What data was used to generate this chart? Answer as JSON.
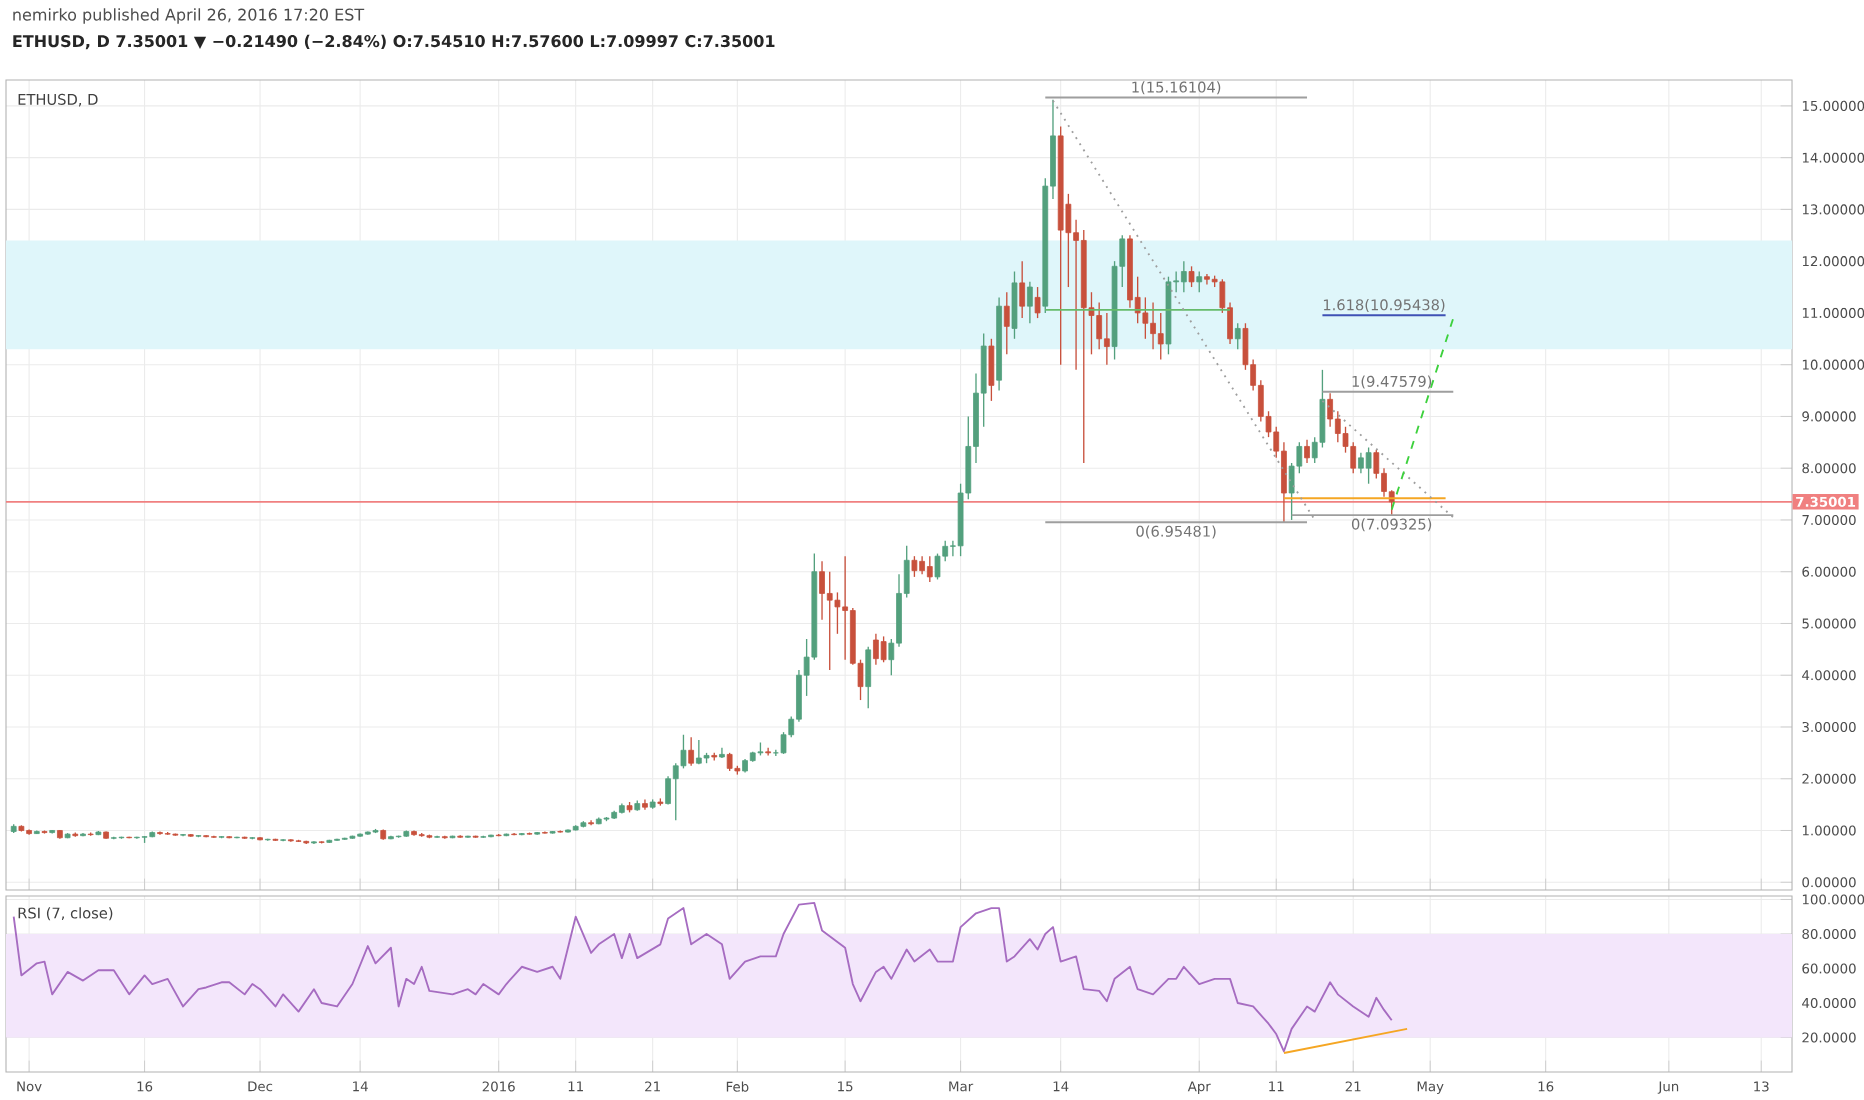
{
  "chart_data": [
    {
      "type": "candlestick",
      "title": "ETHUSD, D 7.35001 ▼ −0.21490 (−2.84%) O:7.54510 H:7.57600 L:7.09997 C:7.35001",
      "subtitle": "ETHUSD, D",
      "annotations": [
        "nemirko published April 26, 2016 17:20 EST",
        {
          "text": "1(15.16104)",
          "x": "2016-03-29",
          "y": 15.16104
        },
        {
          "text": "0(6.95481)",
          "x": "2016-03-29",
          "y": 6.95481
        },
        {
          "text": "1.618(10.95438)",
          "x": "2016-04-25",
          "y": 10.95438
        },
        {
          "text": "1(9.47579)",
          "x": "2016-04-26",
          "y": 9.47579
        },
        {
          "text": "0(7.09325)",
          "x": "2016-04-26",
          "y": 7.09325
        }
      ],
      "x": [
        "2015-10-30",
        "2015-10-31",
        "2015-11-01",
        "2015-11-02",
        "2015-11-03",
        "2015-11-04",
        "2015-11-05",
        "2015-11-06",
        "2015-11-07",
        "2015-11-08",
        "2015-11-09",
        "2015-11-10",
        "2015-11-11",
        "2015-11-12",
        "2015-11-13",
        "2015-11-14",
        "2015-11-15",
        "2015-11-16",
        "2015-11-17",
        "2015-11-18",
        "2015-11-19",
        "2015-11-20",
        "2015-11-21",
        "2015-11-22",
        "2015-11-23",
        "2015-11-24",
        "2015-11-25",
        "2015-11-26",
        "2015-11-27",
        "2015-11-28",
        "2015-11-29",
        "2015-11-30",
        "2015-12-01",
        "2015-12-02",
        "2015-12-03",
        "2015-12-04",
        "2015-12-05",
        "2015-12-06",
        "2015-12-07",
        "2015-12-08",
        "2015-12-09",
        "2015-12-10",
        "2015-12-11",
        "2015-12-12",
        "2015-12-13",
        "2015-12-14",
        "2015-12-15",
        "2015-12-16",
        "2015-12-17",
        "2015-12-18",
        "2015-12-19",
        "2015-12-20",
        "2015-12-21",
        "2015-12-22",
        "2015-12-23",
        "2015-12-24",
        "2015-12-25",
        "2015-12-26",
        "2015-12-27",
        "2015-12-28",
        "2015-12-29",
        "2015-12-30",
        "2015-12-31",
        "2016-01-01",
        "2016-01-02",
        "2016-01-03",
        "2016-01-04",
        "2016-01-05",
        "2016-01-06",
        "2016-01-07",
        "2016-01-08",
        "2016-01-09",
        "2016-01-10",
        "2016-01-11",
        "2016-01-12",
        "2016-01-13",
        "2016-01-14",
        "2016-01-15",
        "2016-01-16",
        "2016-01-17",
        "2016-01-18",
        "2016-01-19",
        "2016-01-20",
        "2016-01-21",
        "2016-01-22",
        "2016-01-23",
        "2016-01-24",
        "2016-01-25",
        "2016-01-26",
        "2016-01-27",
        "2016-01-28",
        "2016-01-29",
        "2016-01-30",
        "2016-01-31",
        "2016-02-01",
        "2016-02-02",
        "2016-02-03",
        "2016-02-04",
        "2016-02-05",
        "2016-02-06",
        "2016-02-07",
        "2016-02-08",
        "2016-02-09",
        "2016-02-10",
        "2016-02-11",
        "2016-02-12",
        "2016-02-13",
        "2016-02-14",
        "2016-02-15",
        "2016-02-16",
        "2016-02-17",
        "2016-02-18",
        "2016-02-19",
        "2016-02-20",
        "2016-02-21",
        "2016-02-22",
        "2016-02-23",
        "2016-02-24",
        "2016-02-25",
        "2016-02-26",
        "2016-02-27",
        "2016-02-28",
        "2016-02-29",
        "2016-03-01",
        "2016-03-02",
        "2016-03-03",
        "2016-03-04",
        "2016-03-05",
        "2016-03-06",
        "2016-03-07",
        "2016-03-08",
        "2016-03-09",
        "2016-03-10",
        "2016-03-11",
        "2016-03-12",
        "2016-03-13",
        "2016-03-14",
        "2016-03-15",
        "2016-03-16",
        "2016-03-17",
        "2016-03-18",
        "2016-03-19",
        "2016-03-20",
        "2016-03-21",
        "2016-03-22",
        "2016-03-23",
        "2016-03-24",
        "2016-03-25",
        "2016-03-26",
        "2016-03-27",
        "2016-03-28",
        "2016-03-29",
        "2016-03-30",
        "2016-03-31",
        "2016-04-01",
        "2016-04-02",
        "2016-04-03",
        "2016-04-04",
        "2016-04-05",
        "2016-04-06",
        "2016-04-07",
        "2016-04-08",
        "2016-04-09",
        "2016-04-10",
        "2016-04-11",
        "2016-04-12",
        "2016-04-13",
        "2016-04-14",
        "2016-04-15",
        "2016-04-16",
        "2016-04-17",
        "2016-04-18",
        "2016-04-19",
        "2016-04-20",
        "2016-04-21",
        "2016-04-22",
        "2016-04-23",
        "2016-04-24",
        "2016-04-25",
        "2016-04-26"
      ],
      "ohlc": [
        [
          0.98,
          1.12,
          0.95,
          1.08
        ],
        [
          1.08,
          1.1,
          0.98,
          1.0
        ],
        [
          1.0,
          1.02,
          0.92,
          0.94
        ],
        [
          0.94,
          1.0,
          0.93,
          0.98
        ],
        [
          0.98,
          1.0,
          0.94,
          0.96
        ],
        [
          0.96,
          1.01,
          0.94,
          1.0
        ],
        [
          1.0,
          1.01,
          0.84,
          0.86
        ],
        [
          0.86,
          0.95,
          0.85,
          0.93
        ],
        [
          0.93,
          0.96,
          0.88,
          0.9
        ],
        [
          0.9,
          0.95,
          0.89,
          0.93
        ],
        [
          0.93,
          0.96,
          0.9,
          0.92
        ],
        [
          0.92,
          0.99,
          0.91,
          0.97
        ],
        [
          0.97,
          0.98,
          0.84,
          0.85
        ],
        [
          0.85,
          0.88,
          0.83,
          0.86
        ],
        [
          0.86,
          0.88,
          0.84,
          0.87
        ],
        [
          0.87,
          0.88,
          0.85,
          0.86
        ],
        [
          0.86,
          0.88,
          0.84,
          0.87
        ],
        [
          0.87,
          0.89,
          0.76,
          0.88
        ],
        [
          0.88,
          0.98,
          0.87,
          0.96
        ],
        [
          0.96,
          0.98,
          0.92,
          0.94
        ],
        [
          0.94,
          0.97,
          0.92,
          0.93
        ],
        [
          0.93,
          0.94,
          0.9,
          0.91
        ],
        [
          0.91,
          0.93,
          0.89,
          0.92
        ],
        [
          0.92,
          0.93,
          0.88,
          0.89
        ],
        [
          0.89,
          0.91,
          0.87,
          0.9
        ],
        [
          0.9,
          0.91,
          0.87,
          0.88
        ],
        [
          0.88,
          0.9,
          0.86,
          0.87
        ],
        [
          0.87,
          0.89,
          0.85,
          0.88
        ],
        [
          0.88,
          0.89,
          0.85,
          0.86
        ],
        [
          0.86,
          0.88,
          0.85,
          0.87
        ],
        [
          0.87,
          0.88,
          0.84,
          0.85
        ],
        [
          0.85,
          0.87,
          0.83,
          0.86
        ],
        [
          0.86,
          0.87,
          0.81,
          0.82
        ],
        [
          0.82,
          0.84,
          0.8,
          0.83
        ],
        [
          0.83,
          0.84,
          0.8,
          0.81
        ],
        [
          0.81,
          0.83,
          0.79,
          0.82
        ],
        [
          0.82,
          0.83,
          0.78,
          0.8
        ],
        [
          0.8,
          0.82,
          0.78,
          0.79
        ],
        [
          0.79,
          0.8,
          0.74,
          0.76
        ],
        [
          0.76,
          0.79,
          0.74,
          0.78
        ],
        [
          0.78,
          0.79,
          0.75,
          0.77
        ],
        [
          0.77,
          0.82,
          0.76,
          0.81
        ],
        [
          0.81,
          0.84,
          0.8,
          0.83
        ],
        [
          0.83,
          0.86,
          0.82,
          0.85
        ],
        [
          0.85,
          0.9,
          0.84,
          0.89
        ],
        [
          0.89,
          0.94,
          0.88,
          0.93
        ],
        [
          0.93,
          0.98,
          0.92,
          0.97
        ],
        [
          0.97,
          1.03,
          0.95,
          1.0
        ],
        [
          1.0,
          1.02,
          0.82,
          0.84
        ],
        [
          0.84,
          0.9,
          0.83,
          0.88
        ],
        [
          0.88,
          0.9,
          0.86,
          0.89
        ],
        [
          0.89,
          1.0,
          0.88,
          0.98
        ],
        [
          0.98,
          1.0,
          0.9,
          0.92
        ],
        [
          0.92,
          0.95,
          0.88,
          0.9
        ],
        [
          0.9,
          0.92,
          0.85,
          0.87
        ],
        [
          0.87,
          0.9,
          0.86,
          0.88
        ],
        [
          0.88,
          0.9,
          0.84,
          0.86
        ],
        [
          0.86,
          0.9,
          0.85,
          0.89
        ],
        [
          0.89,
          0.91,
          0.86,
          0.87
        ],
        [
          0.87,
          0.9,
          0.86,
          0.89
        ],
        [
          0.89,
          0.9,
          0.86,
          0.87
        ],
        [
          0.87,
          0.9,
          0.86,
          0.88
        ],
        [
          0.88,
          0.92,
          0.87,
          0.91
        ],
        [
          0.91,
          0.93,
          0.89,
          0.9
        ],
        [
          0.9,
          0.94,
          0.89,
          0.93
        ],
        [
          0.93,
          0.95,
          0.91,
          0.92
        ],
        [
          0.92,
          0.95,
          0.91,
          0.94
        ],
        [
          0.94,
          0.96,
          0.92,
          0.93
        ],
        [
          0.93,
          0.97,
          0.92,
          0.96
        ],
        [
          0.96,
          0.98,
          0.94,
          0.95
        ],
        [
          0.95,
          0.99,
          0.94,
          0.98
        ],
        [
          0.98,
          1.0,
          0.96,
          0.97
        ],
        [
          0.97,
          1.02,
          0.96,
          1.01
        ],
        [
          1.01,
          1.1,
          1.0,
          1.08
        ],
        [
          1.08,
          1.18,
          1.06,
          1.15
        ],
        [
          1.15,
          1.2,
          1.1,
          1.13
        ],
        [
          1.13,
          1.25,
          1.12,
          1.22
        ],
        [
          1.22,
          1.26,
          1.18,
          1.24
        ],
        [
          1.24,
          1.38,
          1.22,
          1.35
        ],
        [
          1.35,
          1.52,
          1.33,
          1.48
        ],
        [
          1.48,
          1.55,
          1.35,
          1.4
        ],
        [
          1.4,
          1.58,
          1.38,
          1.52
        ],
        [
          1.52,
          1.6,
          1.4,
          1.45
        ],
        [
          1.45,
          1.6,
          1.42,
          1.55
        ],
        [
          1.55,
          1.62,
          1.48,
          1.52
        ],
        [
          1.52,
          2.05,
          1.5,
          2.0
        ],
        [
          2.0,
          2.3,
          1.2,
          2.25
        ],
        [
          2.25,
          2.85,
          2.2,
          2.55
        ],
        [
          2.55,
          2.8,
          2.25,
          2.3
        ],
        [
          2.3,
          2.75,
          2.28,
          2.4
        ],
        [
          2.4,
          2.5,
          2.3,
          2.45
        ],
        [
          2.45,
          2.5,
          2.35,
          2.42
        ],
        [
          2.42,
          2.6,
          2.4,
          2.47
        ],
        [
          2.47,
          2.5,
          2.15,
          2.2
        ],
        [
          2.2,
          2.25,
          2.08,
          2.15
        ],
        [
          2.15,
          2.38,
          2.12,
          2.35
        ],
        [
          2.35,
          2.52,
          2.33,
          2.5
        ],
        [
          2.5,
          2.7,
          2.45,
          2.52
        ],
        [
          2.52,
          2.6,
          2.45,
          2.5
        ],
        [
          2.5,
          2.56,
          2.44,
          2.5
        ],
        [
          2.5,
          2.9,
          2.48,
          2.85
        ],
        [
          2.85,
          3.2,
          2.8,
          3.15
        ],
        [
          3.15,
          4.1,
          3.1,
          4.0
        ],
        [
          4.0,
          4.7,
          3.6,
          4.35
        ],
        [
          4.35,
          6.35,
          4.3,
          6.0
        ],
        [
          6.0,
          6.2,
          5.07,
          5.58
        ],
        [
          5.58,
          6.0,
          4.1,
          5.45
        ],
        [
          5.45,
          5.6,
          4.8,
          5.32
        ],
        [
          5.32,
          6.3,
          4.3,
          5.25
        ],
        [
          5.25,
          5.3,
          4.2,
          4.23
        ],
        [
          4.23,
          4.3,
          3.52,
          3.78
        ],
        [
          3.78,
          4.55,
          3.36,
          4.49
        ],
        [
          4.68,
          4.8,
          4.2,
          4.32
        ],
        [
          4.65,
          4.75,
          4.25,
          4.3
        ],
        [
          4.3,
          4.7,
          4.0,
          4.62
        ],
        [
          4.62,
          5.95,
          4.55,
          5.58
        ],
        [
          5.58,
          6.5,
          5.5,
          6.22
        ],
        [
          6.22,
          6.3,
          5.9,
          6.02
        ],
        [
          6.2,
          6.3,
          5.95,
          6.02
        ],
        [
          6.1,
          6.3,
          5.8,
          5.9
        ],
        [
          5.9,
          6.35,
          5.85,
          6.3
        ],
        [
          6.3,
          6.6,
          6.2,
          6.49
        ],
        [
          6.49,
          6.6,
          6.3,
          6.5
        ],
        [
          6.5,
          7.7,
          6.3,
          7.52
        ],
        [
          7.52,
          9.0,
          7.4,
          8.42
        ],
        [
          8.42,
          9.83,
          8.1,
          9.45
        ],
        [
          9.45,
          10.6,
          8.8,
          10.36
        ],
        [
          10.36,
          10.5,
          9.3,
          9.6
        ],
        [
          9.7,
          11.3,
          9.5,
          11.13
        ],
        [
          11.13,
          11.4,
          10.2,
          10.74
        ],
        [
          10.7,
          11.8,
          10.5,
          11.58
        ],
        [
          11.58,
          12.0,
          10.9,
          11.13
        ],
        [
          11.13,
          11.6,
          10.8,
          11.5
        ],
        [
          11.3,
          11.5,
          10.9,
          11.0
        ],
        [
          11.13,
          13.6,
          11.0,
          13.45
        ],
        [
          13.45,
          15.12,
          13.2,
          14.42
        ],
        [
          14.42,
          14.6,
          10.0,
          12.6
        ],
        [
          13.1,
          13.3,
          11.5,
          12.55
        ],
        [
          12.55,
          12.8,
          9.9,
          12.4
        ],
        [
          12.4,
          12.6,
          8.1,
          11.1
        ],
        [
          11.1,
          11.4,
          10.2,
          10.95
        ],
        [
          10.95,
          11.2,
          10.3,
          10.5
        ],
        [
          10.5,
          11.0,
          10.0,
          10.35
        ],
        [
          10.35,
          12.0,
          10.1,
          11.9
        ],
        [
          11.9,
          12.5,
          11.5,
          12.43
        ],
        [
          12.43,
          12.5,
          11.1,
          11.25
        ],
        [
          11.3,
          11.7,
          10.8,
          11.0
        ],
        [
          11.0,
          11.3,
          10.5,
          10.8
        ],
        [
          10.8,
          11.2,
          10.3,
          10.6
        ],
        [
          10.6,
          11.0,
          10.1,
          10.4
        ],
        [
          10.4,
          11.7,
          10.2,
          11.6
        ],
        [
          11.6,
          11.8,
          11.4,
          11.62
        ],
        [
          11.6,
          12.0,
          11.4,
          11.8
        ],
        [
          11.8,
          11.9,
          11.5,
          11.6
        ],
        [
          11.6,
          11.8,
          11.4,
          11.7
        ],
        [
          11.7,
          11.75,
          11.55,
          11.65
        ],
        [
          11.65,
          11.72,
          11.5,
          11.6
        ],
        [
          11.6,
          11.65,
          11.0,
          11.1
        ],
        [
          11.1,
          11.2,
          10.4,
          10.5
        ],
        [
          10.5,
          10.8,
          10.3,
          10.7
        ],
        [
          10.7,
          10.8,
          9.9,
          10.0
        ],
        [
          10.0,
          10.1,
          9.5,
          9.6
        ],
        [
          9.6,
          9.7,
          8.9,
          9.0
        ],
        [
          9.0,
          9.1,
          8.6,
          8.7
        ],
        [
          8.7,
          8.8,
          8.2,
          8.33
        ],
        [
          8.33,
          8.5,
          6.96,
          7.52
        ],
        [
          7.52,
          8.1,
          7.0,
          8.04
        ],
        [
          8.04,
          8.5,
          7.9,
          8.42
        ],
        [
          8.42,
          8.55,
          8.1,
          8.2
        ],
        [
          8.2,
          8.6,
          8.1,
          8.5
        ],
        [
          8.5,
          9.9,
          8.4,
          9.33
        ],
        [
          9.33,
          9.45,
          8.8,
          8.95
        ],
        [
          8.95,
          9.1,
          8.5,
          8.67
        ],
        [
          8.67,
          8.8,
          8.3,
          8.42
        ],
        [
          8.42,
          8.5,
          7.9,
          8.0
        ],
        [
          8.0,
          8.3,
          7.9,
          8.2
        ],
        [
          8.0,
          8.4,
          7.7,
          8.3
        ],
        [
          8.3,
          8.35,
          7.8,
          7.9
        ],
        [
          7.9,
          8.0,
          7.45,
          7.55
        ],
        [
          7.5451,
          7.576,
          7.09997,
          7.35001
        ]
      ],
      "series": [
        {
          "type": "line",
          "color": "#9e9e9e",
          "x": [
            "2016-03-12",
            "2016-04-15"
          ],
          "values": [
            15.16104,
            15.16104
          ]
        },
        {
          "type": "line",
          "color": "#9e9e9e",
          "x": [
            "2016-03-12",
            "2016-04-15"
          ],
          "values": [
            6.95481,
            6.95481
          ]
        },
        {
          "type": "line",
          "color": "#66bb6a",
          "x": [
            "2016-03-12",
            "2016-04-05"
          ],
          "values": [
            11.06,
            11.06
          ]
        },
        {
          "type": "line",
          "color": "#3f51b5",
          "x": [
            "2016-04-17",
            "2016-05-03"
          ],
          "values": [
            10.95438,
            10.95438
          ]
        },
        {
          "type": "line",
          "color": "#9e9e9e",
          "x": [
            "2016-04-17",
            "2016-05-04"
          ],
          "values": [
            9.47579,
            9.47579
          ]
        },
        {
          "type": "line",
          "color": "#9e9e9e",
          "x": [
            "2016-04-13",
            "2016-05-04"
          ],
          "values": [
            7.09325,
            7.09325
          ]
        },
        {
          "type": "line",
          "color": "#f5a623",
          "x": [
            "2016-04-12",
            "2016-05-03"
          ],
          "values": [
            7.42,
            7.42
          ]
        },
        {
          "type": "line",
          "color": "#9e9e9e",
          "line_style": "dotted",
          "x": [
            "2016-03-13",
            "2016-04-16"
          ],
          "values": [
            15.1,
            7.0
          ]
        },
        {
          "type": "line",
          "color": "#9e9e9e",
          "line_style": "dotted",
          "x": [
            "2016-04-17",
            "2016-05-04"
          ],
          "values": [
            9.3,
            7.05
          ]
        },
        {
          "type": "line",
          "color": "#3dd13d",
          "line_style": "dashed",
          "x": [
            "2016-04-26",
            "2016-05-04"
          ],
          "values": [
            7.2,
            10.9
          ]
        }
      ],
      "bands": [
        {
          "axis": "y",
          "from": 10.3,
          "to": 12.4,
          "color": "#dff6fa"
        }
      ],
      "ref_lines": [
        {
          "axis": "y",
          "value": 7.35001,
          "label": "7.35001",
          "color": "#f08080"
        }
      ],
      "xlim": [
        "2015-10-29",
        "2016-06-17"
      ],
      "xticks": [
        {
          "value": "2015-11-01",
          "label": null
        },
        {
          "value": "2015-11-16",
          "label": null
        },
        {
          "value": "2015-12-01",
          "label": null
        },
        {
          "value": "2015-12-14",
          "label": null
        },
        {
          "value": "2016-01-01",
          "label": null
        },
        {
          "value": "2016-01-11",
          "label": null
        },
        {
          "value": "2016-01-21",
          "label": null
        },
        {
          "value": "2016-02-01",
          "label": null
        },
        {
          "value": "2016-02-15",
          "label": null
        },
        {
          "value": "2016-03-01",
          "label": null
        },
        {
          "value": "2016-03-14",
          "label": null
        },
        {
          "value": "2016-04-01",
          "label": null
        },
        {
          "value": "2016-04-11",
          "label": null
        },
        {
          "value": "2016-04-21",
          "label": null
        },
        {
          "value": "2016-05-01",
          "label": null
        },
        {
          "value": "2016-05-16",
          "label": null
        },
        {
          "value": "2016-06-01",
          "label": null
        },
        {
          "value": "2016-06-13",
          "label": null
        }
      ],
      "ylim": [
        -0.15,
        15.5
      ],
      "yticks": [
        {
          "value": 0,
          "label": "0.00000"
        },
        {
          "value": 1,
          "label": "1.00000"
        },
        {
          "value": 2,
          "label": "2.00000"
        },
        {
          "value": 3,
          "label": "3.00000"
        },
        {
          "value": 4,
          "label": "4.00000"
        },
        {
          "value": 5,
          "label": "5.00000"
        },
        {
          "value": 6,
          "label": "6.00000"
        },
        {
          "value": 7,
          "label": "7.00000"
        },
        {
          "value": 8,
          "label": "8.00000"
        },
        {
          "value": 9,
          "label": "9.00000"
        },
        {
          "value": 10,
          "label": "10.00000"
        },
        {
          "value": 11,
          "label": "11.00000"
        },
        {
          "value": 12,
          "label": "12.00000"
        },
        {
          "value": 13,
          "label": "13.00000"
        },
        {
          "value": 14,
          "label": "14.00000"
        },
        {
          "value": 15,
          "label": "15.00000"
        }
      ],
      "tick_labels": "y",
      "grid": true
    },
    {
      "type": "line",
      "title": "RSI (7, close)",
      "series": [
        {
          "color": "#a66cc1",
          "x": [
            "2015-10-30",
            "2015-10-31",
            "2015-11-02",
            "2015-11-03",
            "2015-11-04",
            "2015-11-06",
            "2015-11-08",
            "2015-11-10",
            "2015-11-12",
            "2015-11-14",
            "2015-11-16",
            "2015-11-17",
            "2015-11-19",
            "2015-11-21",
            "2015-11-23",
            "2015-11-24",
            "2015-11-26",
            "2015-11-27",
            "2015-11-29",
            "2015-11-30",
            "2015-12-01",
            "2015-12-03",
            "2015-12-04",
            "2015-12-06",
            "2015-12-08",
            "2015-12-09",
            "2015-12-11",
            "2015-12-13",
            "2015-12-15",
            "2015-12-16",
            "2015-12-18",
            "2015-12-19",
            "2015-12-20",
            "2015-12-21",
            "2015-12-22",
            "2015-12-23",
            "2015-12-26",
            "2015-12-28",
            "2015-12-29",
            "2015-12-30",
            "2016-01-01",
            "2016-01-02",
            "2016-01-04",
            "2016-01-06",
            "2016-01-08",
            "2016-01-09",
            "2016-01-11",
            "2016-01-13",
            "2016-01-14",
            "2016-01-16",
            "2016-01-17",
            "2016-01-18",
            "2016-01-19",
            "2016-01-22",
            "2016-01-23",
            "2016-01-25",
            "2016-01-26",
            "2016-01-28",
            "2016-01-30",
            "2016-01-31",
            "2016-02-02",
            "2016-02-04",
            "2016-02-06",
            "2016-02-07",
            "2016-02-09",
            "2016-02-11",
            "2016-02-12",
            "2016-02-15",
            "2016-02-16",
            "2016-02-17",
            "2016-02-19",
            "2016-02-20",
            "2016-02-21",
            "2016-02-23",
            "2016-02-24",
            "2016-02-26",
            "2016-02-27",
            "2016-02-29",
            "2016-03-01",
            "2016-03-03",
            "2016-03-05",
            "2016-03-06",
            "2016-03-07",
            "2016-03-08",
            "2016-03-10",
            "2016-03-11",
            "2016-03-12",
            "2016-03-13",
            "2016-03-14",
            "2016-03-16",
            "2016-03-17",
            "2016-03-19",
            "2016-03-20",
            "2016-03-21",
            "2016-03-23",
            "2016-03-24",
            "2016-03-26",
            "2016-03-28",
            "2016-03-29",
            "2016-03-30",
            "2016-04-01",
            "2016-04-03",
            "2016-04-05",
            "2016-04-06",
            "2016-04-08",
            "2016-04-10",
            "2016-04-11",
            "2016-04-12",
            "2016-04-13",
            "2016-04-15",
            "2016-04-16",
            "2016-04-18",
            "2016-04-19",
            "2016-04-21",
            "2016-04-23",
            "2016-04-24",
            "2016-04-25",
            "2016-04-26"
          ],
          "values": [
            90,
            56,
            63,
            64,
            45,
            58,
            53,
            59,
            59,
            45,
            56,
            51,
            54,
            38,
            48,
            49,
            52,
            52,
            45,
            51,
            48,
            38,
            45,
            35,
            48,
            40,
            38,
            51,
            73,
            63,
            72,
            38,
            54,
            51,
            61,
            47,
            45,
            48,
            45,
            51,
            45,
            51,
            61,
            58,
            61,
            54,
            90,
            69,
            74,
            80,
            66,
            80,
            66,
            74,
            89,
            95,
            74,
            80,
            74,
            54,
            64,
            67,
            67,
            80,
            97,
            98,
            82,
            72,
            51,
            41,
            58,
            61,
            54,
            71,
            64,
            71,
            64,
            64,
            84,
            92,
            95,
            95,
            64,
            67,
            77,
            71,
            80,
            84,
            64,
            67,
            48,
            47,
            41,
            54,
            61,
            48,
            45,
            54,
            54,
            61,
            51,
            54,
            54,
            40,
            38,
            28,
            22,
            12,
            25,
            38,
            35,
            52,
            45,
            38,
            32,
            43,
            36,
            30
          ]
        },
        {
          "color": "#f5a623",
          "x": [
            "2016-04-12",
            "2016-04-28"
          ],
          "values": [
            11,
            25
          ]
        }
      ],
      "bands": [
        {
          "axis": "y",
          "from": 20,
          "to": 80,
          "color": "#f3e6fb"
        }
      ],
      "xlim": [
        "2015-10-29",
        "2016-06-17"
      ],
      "xticks": [
        {
          "value": "2015-11-01",
          "label": "Nov"
        },
        {
          "value": "2015-11-16",
          "label": "16"
        },
        {
          "value": "2015-12-01",
          "label": "Dec"
        },
        {
          "value": "2015-12-14",
          "label": "14"
        },
        {
          "value": "2016-01-01",
          "label": "2016"
        },
        {
          "value": "2016-01-11",
          "label": "11"
        },
        {
          "value": "2016-01-21",
          "label": "21"
        },
        {
          "value": "2016-02-01",
          "label": "Feb"
        },
        {
          "value": "2016-02-15",
          "label": "15"
        },
        {
          "value": "2016-03-01",
          "label": "Mar"
        },
        {
          "value": "2016-03-14",
          "label": "14"
        },
        {
          "value": "2016-04-01",
          "label": "Apr"
        },
        {
          "value": "2016-04-11",
          "label": "11"
        },
        {
          "value": "2016-04-21",
          "label": "21"
        },
        {
          "value": "2016-05-01",
          "label": "May"
        },
        {
          "value": "2016-05-16",
          "label": "16"
        },
        {
          "value": "2016-06-01",
          "label": "Jun"
        },
        {
          "value": "2016-06-13",
          "label": "13"
        }
      ],
      "ylim": [
        0,
        102
      ],
      "yticks": [
        {
          "value": 20,
          "label": "20.0000"
        },
        {
          "value": 40,
          "label": "40.0000"
        },
        {
          "value": 60,
          "label": "60.0000"
        },
        {
          "value": 80,
          "label": "80.0000"
        },
        {
          "value": 100,
          "label": "100.0000"
        }
      ],
      "grid": true
    }
  ]
}
